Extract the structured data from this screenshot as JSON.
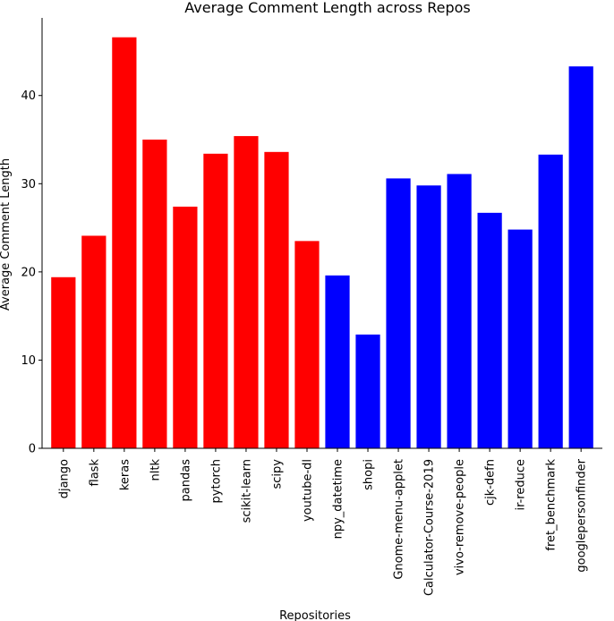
{
  "chart_data": {
    "type": "bar",
    "title": "Average Comment Length across Repos",
    "xlabel": "Repositories",
    "ylabel": "Average Comment Length",
    "ylim": [
      0,
      48.8
    ],
    "yticks": [
      0,
      10,
      20,
      30,
      40
    ],
    "grid": false,
    "categories": [
      "django",
      "flask",
      "keras",
      "nltk",
      "pandas",
      "pytorch",
      "scikit-learn",
      "scipy",
      "youtube-dl",
      "npy_datetime",
      "shopi",
      "Gnome-menu-applet",
      "Calculator-Course-2019",
      "vivo-remove-people",
      "cjk-defn",
      "ir-reduce",
      "fret_benchmark",
      "googlepersonfinder"
    ],
    "values": [
      19.4,
      24.1,
      46.6,
      35.0,
      27.4,
      33.4,
      35.4,
      33.6,
      23.5,
      19.6,
      12.9,
      30.6,
      29.8,
      31.1,
      26.7,
      24.8,
      33.3,
      43.3
    ],
    "colors": [
      "#ff0000",
      "#ff0000",
      "#ff0000",
      "#ff0000",
      "#ff0000",
      "#ff0000",
      "#ff0000",
      "#ff0000",
      "#ff0000",
      "#0000ff",
      "#0000ff",
      "#0000ff",
      "#0000ff",
      "#0000ff",
      "#0000ff",
      "#0000ff",
      "#0000ff",
      "#0000ff"
    ]
  }
}
